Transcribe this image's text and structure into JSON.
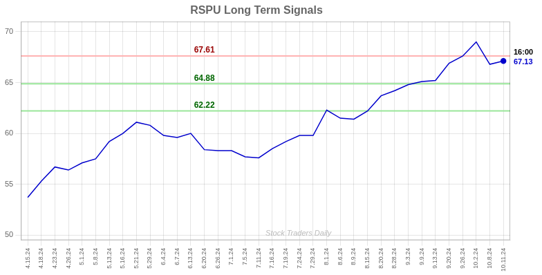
{
  "chart_data": {
    "type": "line",
    "title": "RSPU Long Term Signals",
    "categories": [
      "4.15.24",
      "4.18.24",
      "4.23.24",
      "4.26.24",
      "5.1.24",
      "5.8.24",
      "5.13.24",
      "5.16.24",
      "5.21.24",
      "5.29.24",
      "6.4.24",
      "6.7.24",
      "6.13.24",
      "6.20.24",
      "6.26.24",
      "7.1.24",
      "7.5.24",
      "7.11.24",
      "7.16.24",
      "7.19.24",
      "7.24.24",
      "7.29.24",
      "8.1.24",
      "8.6.24",
      "8.9.24",
      "8.15.24",
      "8.20.24",
      "8.28.24",
      "9.3.24",
      "9.9.24",
      "9.13.24",
      "9.20.24",
      "9.26.24",
      "10.2.24",
      "10.8.24",
      "10.11.24"
    ],
    "values": [
      53.7,
      55.3,
      56.7,
      56.4,
      57.1,
      57.5,
      59.2,
      60.0,
      61.1,
      60.8,
      59.8,
      59.6,
      60.0,
      58.4,
      58.3,
      58.3,
      57.7,
      57.6,
      58.5,
      59.2,
      59.8,
      59.8,
      62.3,
      61.5,
      61.4,
      62.2,
      63.7,
      64.2,
      64.8,
      65.1,
      65.2,
      66.9,
      67.6,
      69.0,
      66.8,
      67.13
    ],
    "color": "#0000cc",
    "ylim": [
      49.5,
      71.0
    ],
    "yticks": [
      50,
      55,
      60,
      65,
      70
    ],
    "grid": true,
    "reference_lines": [
      {
        "value": 67.61,
        "color": "#ffb3b3",
        "label_color": "#990000"
      },
      {
        "value": 64.88,
        "color": "#99e699",
        "label_color": "#006600"
      },
      {
        "value": 62.22,
        "color": "#99e699",
        "label_color": "#006600"
      }
    ],
    "annotations": [
      {
        "text": "16:00",
        "color": "#000000"
      },
      {
        "text": "67.13",
        "color": "#0000cc"
      }
    ],
    "watermark": "Stock Traders Daily"
  }
}
